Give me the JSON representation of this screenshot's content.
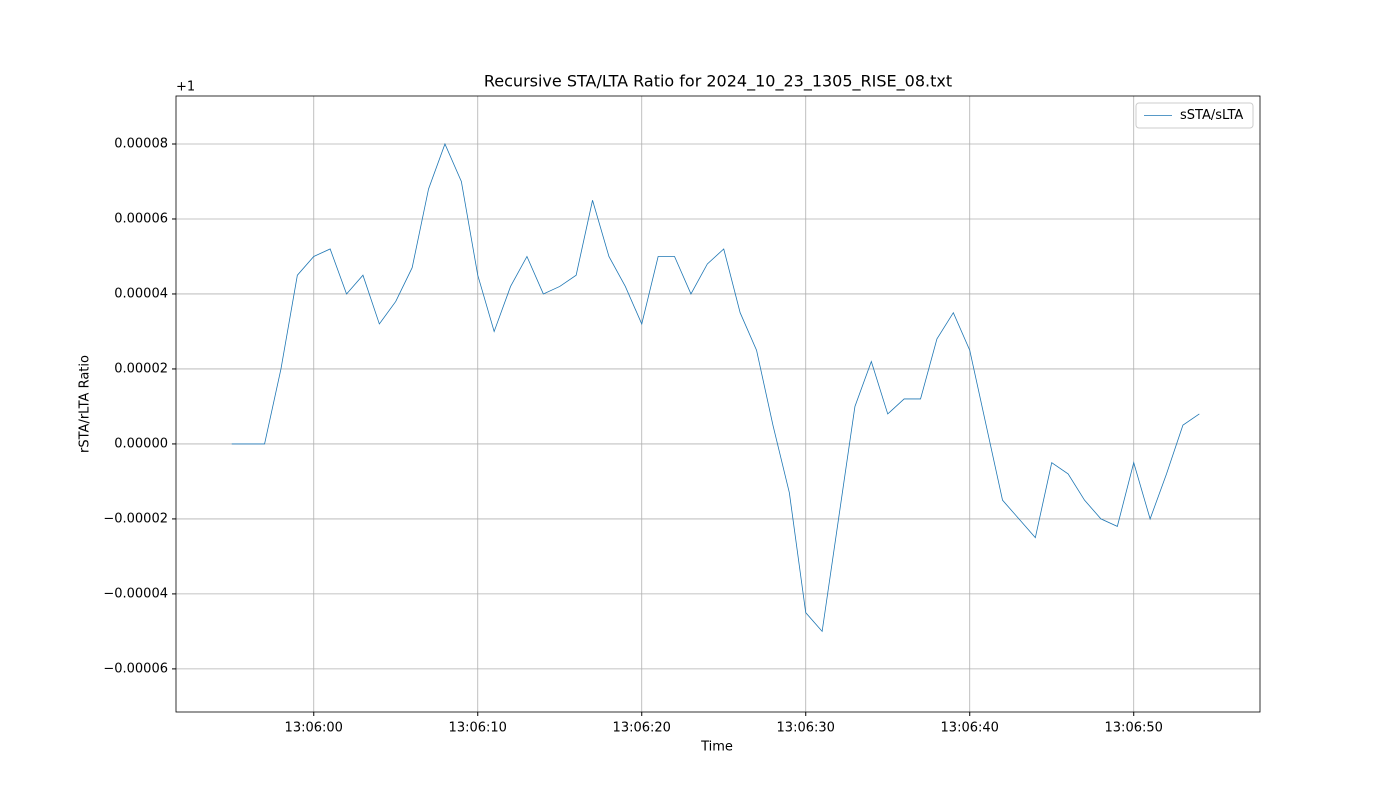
{
  "chart_data": {
    "type": "line",
    "title": "Recursive STA/LTA Ratio for 2024_10_23_1305_RISE_08.txt",
    "xlabel": "Time",
    "ylabel": "rSTA/rLTA Ratio",
    "y_offset": "+1",
    "x": [
      "13:05:55",
      "13:05:56",
      "13:05:57",
      "13:05:58",
      "13:05:59",
      "13:06:00",
      "13:06:01",
      "13:06:02",
      "13:06:03",
      "13:06:04",
      "13:06:05",
      "13:06:06",
      "13:06:07",
      "13:06:08",
      "13:06:09",
      "13:06:10",
      "13:06:11",
      "13:06:12",
      "13:06:13",
      "13:06:14",
      "13:06:15",
      "13:06:16",
      "13:06:17",
      "13:06:18",
      "13:06:19",
      "13:06:20",
      "13:06:21",
      "13:06:22",
      "13:06:23",
      "13:06:24",
      "13:06:25",
      "13:06:26",
      "13:06:27",
      "13:06:28",
      "13:06:29",
      "13:06:30",
      "13:06:31",
      "13:06:32",
      "13:06:33",
      "13:06:34",
      "13:06:35",
      "13:06:36",
      "13:06:37",
      "13:06:38",
      "13:06:39",
      "13:06:40",
      "13:06:41",
      "13:06:42",
      "13:06:43",
      "13:06:44",
      "13:06:45",
      "13:06:46",
      "13:06:47",
      "13:06:48",
      "13:06:49",
      "13:06:50",
      "13:06:51",
      "13:06:52",
      "13:06:53",
      "13:06:54"
    ],
    "series": [
      {
        "name": "sSTA/sLTA",
        "color": "#1f77b4",
        "values": [
          0,
          0,
          0,
          2e-05,
          4.5e-05,
          5e-05,
          5.2e-05,
          4e-05,
          4.5e-05,
          3.2e-05,
          3.8e-05,
          4.7e-05,
          6.8e-05,
          8e-05,
          7e-05,
          4.5e-05,
          3e-05,
          4.2e-05,
          5e-05,
          4e-05,
          4.2e-05,
          4.5e-05,
          6.5e-05,
          5e-05,
          4.2e-05,
          3.2e-05,
          5e-05,
          5e-05,
          4e-05,
          4.8e-05,
          5.2e-05,
          3.5e-05,
          2.5e-05,
          5e-06,
          -1.3e-05,
          -4.5e-05,
          -5e-05,
          -2e-05,
          1e-05,
          2.2e-05,
          8e-06,
          1.2e-05,
          1.2e-05,
          2.8e-05,
          3.5e-05,
          2.5e-05,
          5e-06,
          -1.5e-05,
          -2e-05,
          -2.5e-05,
          -5e-06,
          -8e-06,
          -1.5e-05,
          -2e-05,
          -2.2e-05,
          -5e-06,
          -2e-05,
          -8e-06,
          5e-06,
          8e-06
        ]
      }
    ],
    "xlim": [
      "13:05:51.6",
      "13:06:57.7"
    ],
    "ylim": [
      -7.15e-05,
      9.28e-05
    ],
    "xticks": [
      "13:06:00",
      "13:06:10",
      "13:06:20",
      "13:06:30",
      "13:06:40",
      "13:06:50"
    ],
    "yticks": [
      {
        "value": -6e-05,
        "label": "−0.00006"
      },
      {
        "value": -4e-05,
        "label": "−0.00004"
      },
      {
        "value": -2e-05,
        "label": "−0.00002"
      },
      {
        "value": 0,
        "label": "0.00000"
      },
      2e-05,
      4e-05,
      6e-05,
      8e-05
    ],
    "grid": true,
    "legend": "upper right"
  }
}
